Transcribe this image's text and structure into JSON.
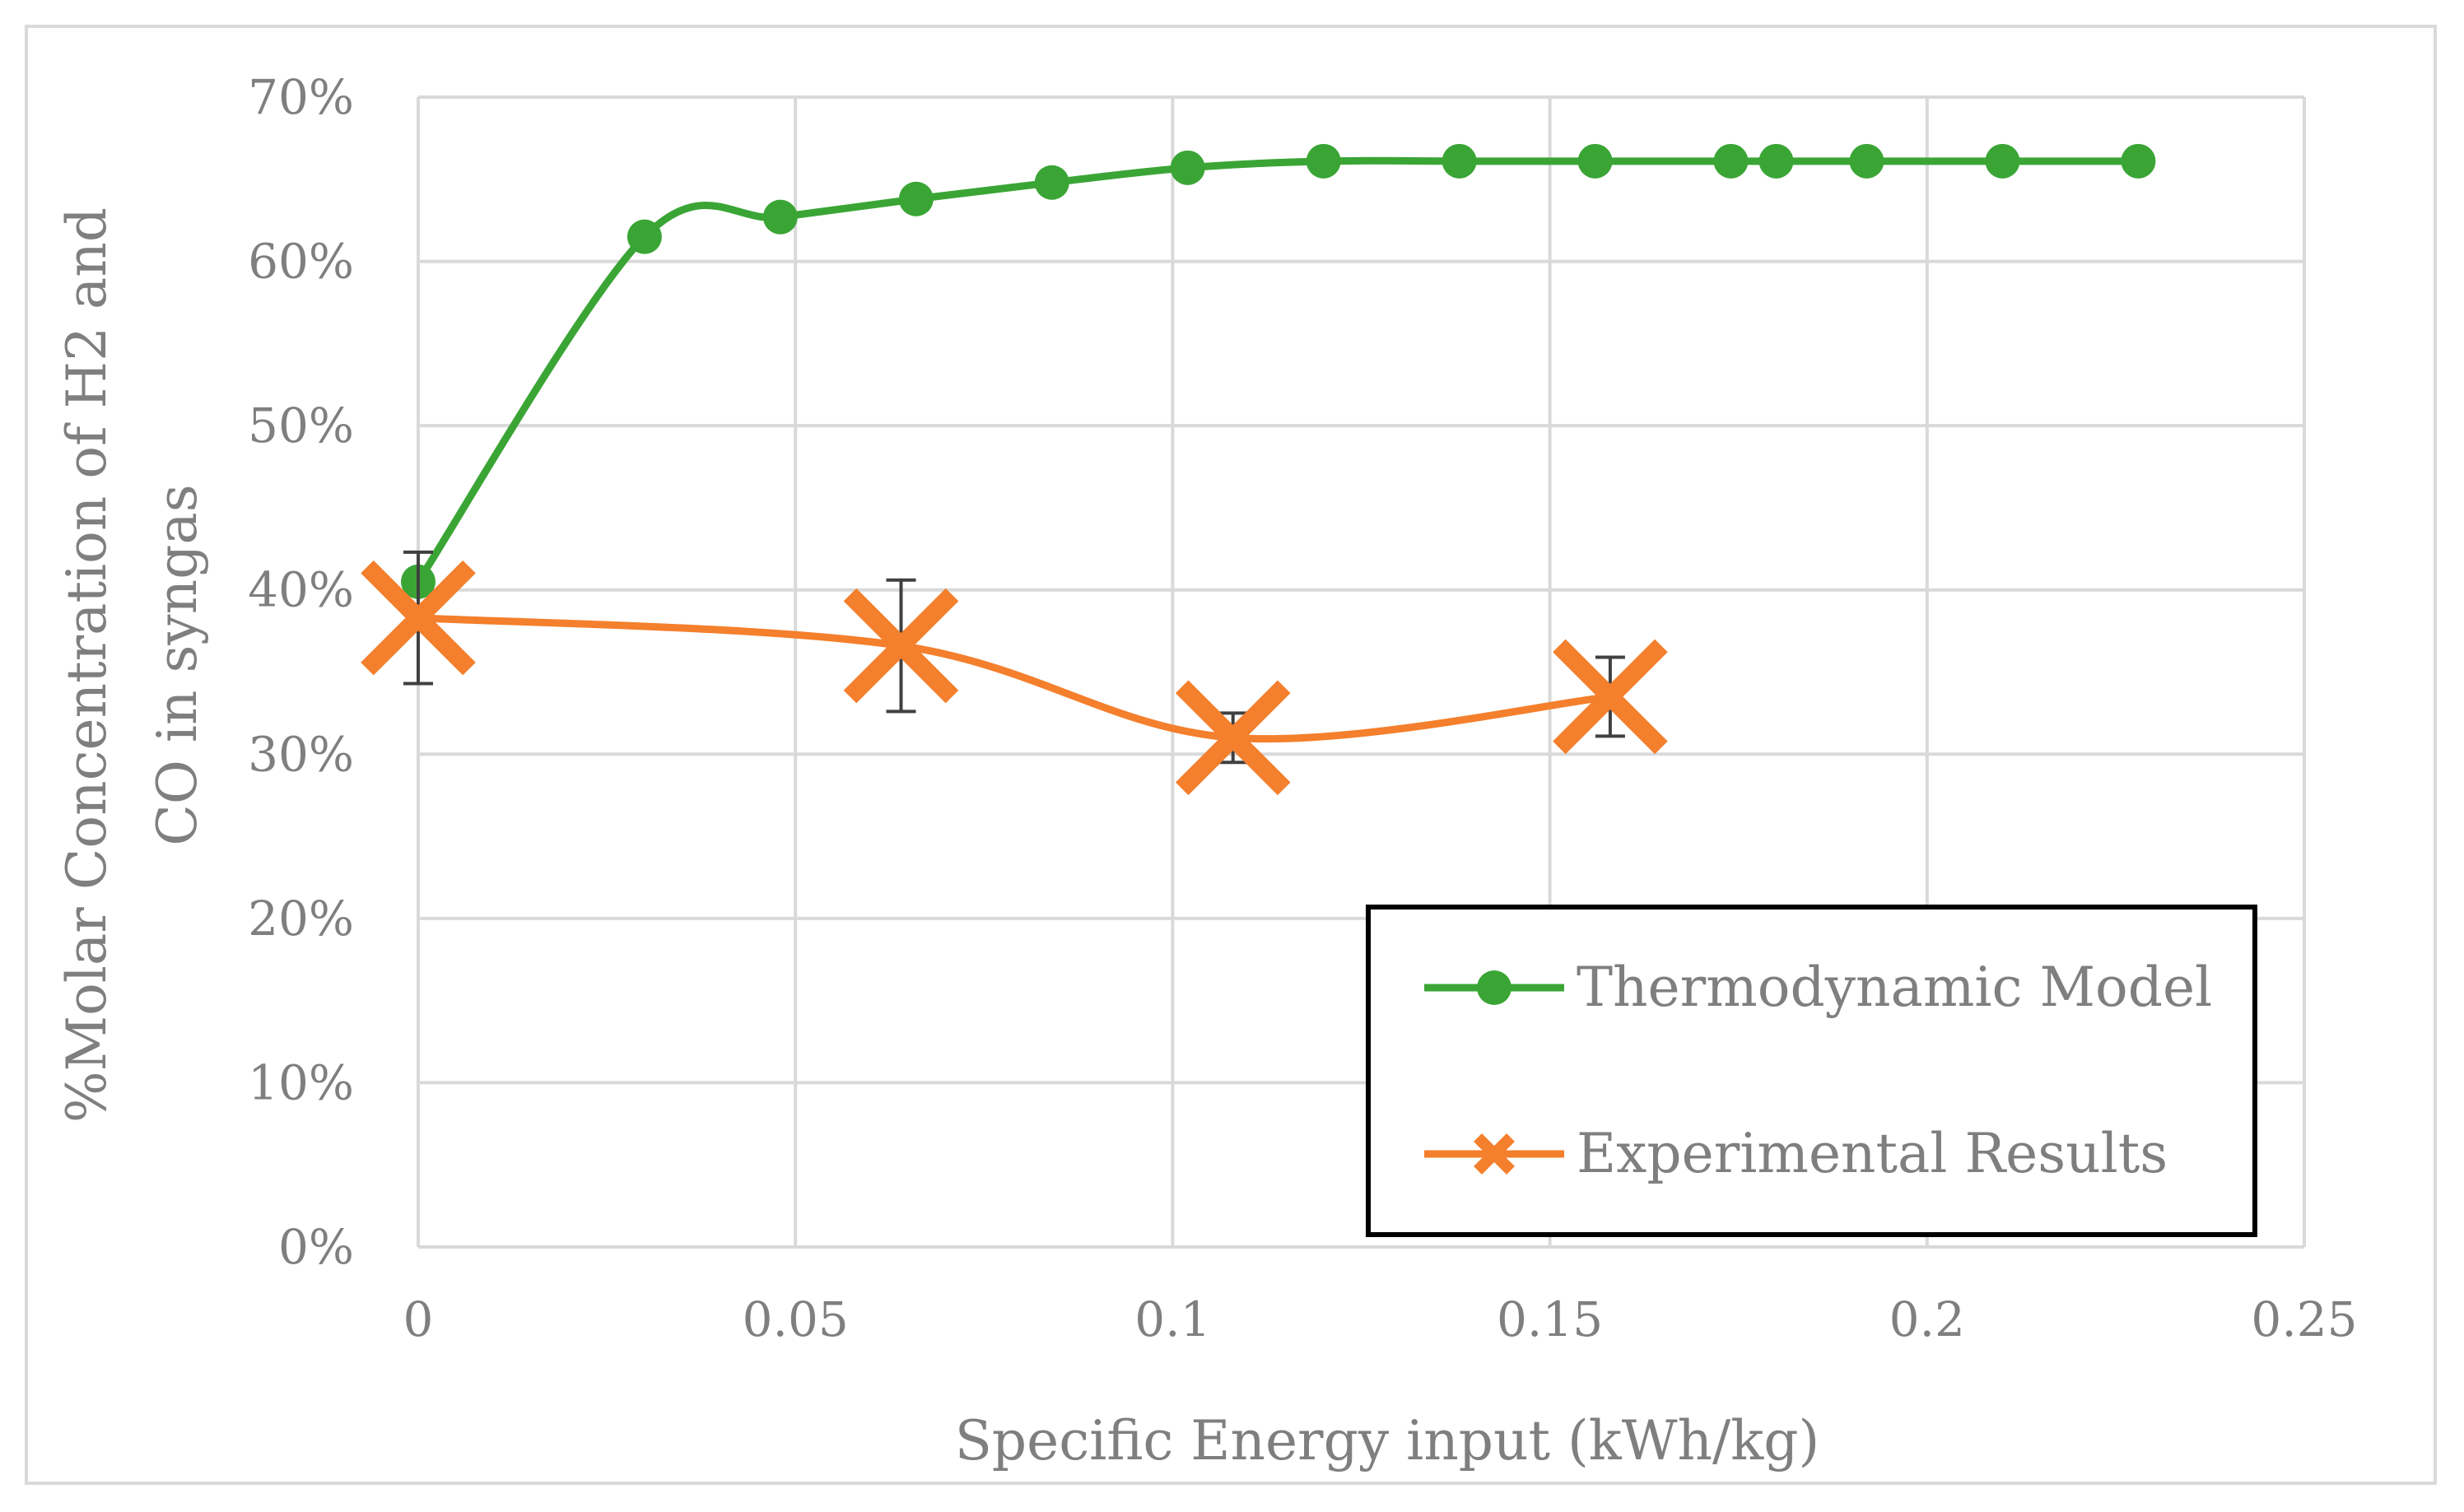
{
  "chart_data": {
    "type": "scatter",
    "title": "",
    "xlabel": "Specific Energy input (kWh/kg)",
    "ylabel_line1": "%Molar Concentration of H2 and",
    "ylabel_line2": "CO in syngas",
    "xlim": [
      0,
      0.25
    ],
    "ylim": [
      0,
      0.7
    ],
    "x_ticks": [
      0,
      0.05,
      0.1,
      0.15,
      0.2,
      0.25
    ],
    "x_tick_labels": [
      "0",
      "0.05",
      "0.1",
      "0.15",
      "0.2",
      "0.25"
    ],
    "y_ticks": [
      0,
      0.1,
      0.2,
      0.3,
      0.4,
      0.5,
      0.6,
      0.7
    ],
    "y_tick_labels": [
      "0%",
      "10%",
      "20%",
      "30%",
      "40%",
      "50%",
      "60%",
      "70%"
    ],
    "grid": true,
    "legend_position": "bottom-right",
    "series": [
      {
        "name": "Thermodynamic Model",
        "color": "#3aa535",
        "marker": "circle",
        "smooth": true,
        "x": [
          0,
          0.03,
          0.048,
          0.066,
          0.084,
          0.102,
          0.12,
          0.138,
          0.156,
          0.174,
          0.18,
          0.192,
          0.21,
          0.228
        ],
        "y": [
          0.405,
          0.615,
          0.627,
          0.638,
          0.648,
          0.657,
          0.661,
          0.661,
          0.661,
          0.661,
          0.661,
          0.661,
          0.661,
          0.661
        ]
      },
      {
        "name": "Experimental Results",
        "color": "#f47f2c",
        "marker": "x",
        "smooth": true,
        "x": [
          0,
          0.064,
          0.108,
          0.158
        ],
        "y": [
          0.383,
          0.366,
          0.31,
          0.335
        ],
        "error": [
          0.04,
          0.04,
          0.015,
          0.024
        ]
      }
    ]
  }
}
